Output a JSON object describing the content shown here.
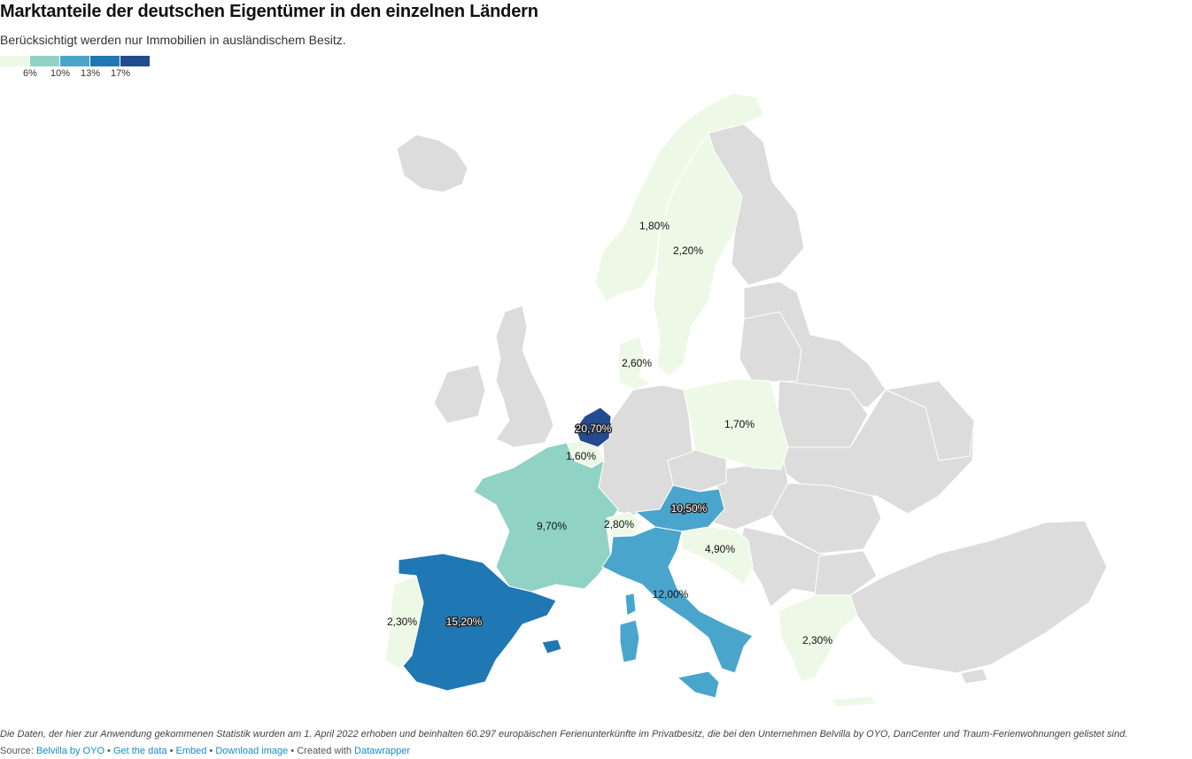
{
  "header": {
    "title": "Marktanteile der deutschen Eigentümer in den einzelnen Ländern",
    "subtitle": "Berücksichtigt werden nur Immobilien in ausländischem Besitz."
  },
  "legend": {
    "colors": [
      "#eef8e6",
      "#90d3c4",
      "#4aa5cc",
      "#1f77b4",
      "#234b8f"
    ],
    "ticks": [
      "6%",
      "10%",
      "13%",
      "17%"
    ]
  },
  "map_data": {
    "type": "choropleth",
    "unit": "%",
    "regions": [
      {
        "id": "norway",
        "value": 1.8,
        "label": "1,80%"
      },
      {
        "id": "sweden",
        "value": 2.2,
        "label": "2,20%"
      },
      {
        "id": "denmark",
        "value": 2.6,
        "label": "2,60%"
      },
      {
        "id": "poland",
        "value": 1.7,
        "label": "1,70%"
      },
      {
        "id": "netherlands",
        "value": 20.7,
        "label": "20,70%"
      },
      {
        "id": "belgium",
        "value": 1.6,
        "label": "1,60%"
      },
      {
        "id": "austria",
        "value": 10.5,
        "label": "10,50%"
      },
      {
        "id": "france",
        "value": 9.7,
        "label": "9,70%"
      },
      {
        "id": "switzerland",
        "value": 2.8,
        "label": "2,80%"
      },
      {
        "id": "croatia",
        "value": 4.9,
        "label": "4,90%"
      },
      {
        "id": "italy",
        "value": 12.0,
        "label": "12,00%"
      },
      {
        "id": "portugal",
        "value": 2.3,
        "label": "2,30%"
      },
      {
        "id": "spain",
        "value": 15.2,
        "label": "15,20%"
      },
      {
        "id": "greece",
        "value": 2.3,
        "label": "2,30%"
      }
    ],
    "no_data_color": "#dcdcdc"
  },
  "footer": {
    "notes": "Die Daten, der hier zur Anwendung gekommenen Statistik wurden am 1. April 2022 erhoben und beinhalten 60.297 europäischen Ferienunterkünfte im Privatbesitz, die bei den Unternehmen Belvilla by OYO, DanCenter und Traum-Ferienwohnungen gelistet sind.",
    "source_prefix": "Source: ",
    "source_name": "Belvilla by OYO",
    "sep1": " • ",
    "get_data": "Get the data",
    "sep2": " • ",
    "embed": "Embed",
    "sep3": " • ",
    "download": "Download image",
    "sep4": " • Created with ",
    "datawrapper": "Datawrapper"
  }
}
